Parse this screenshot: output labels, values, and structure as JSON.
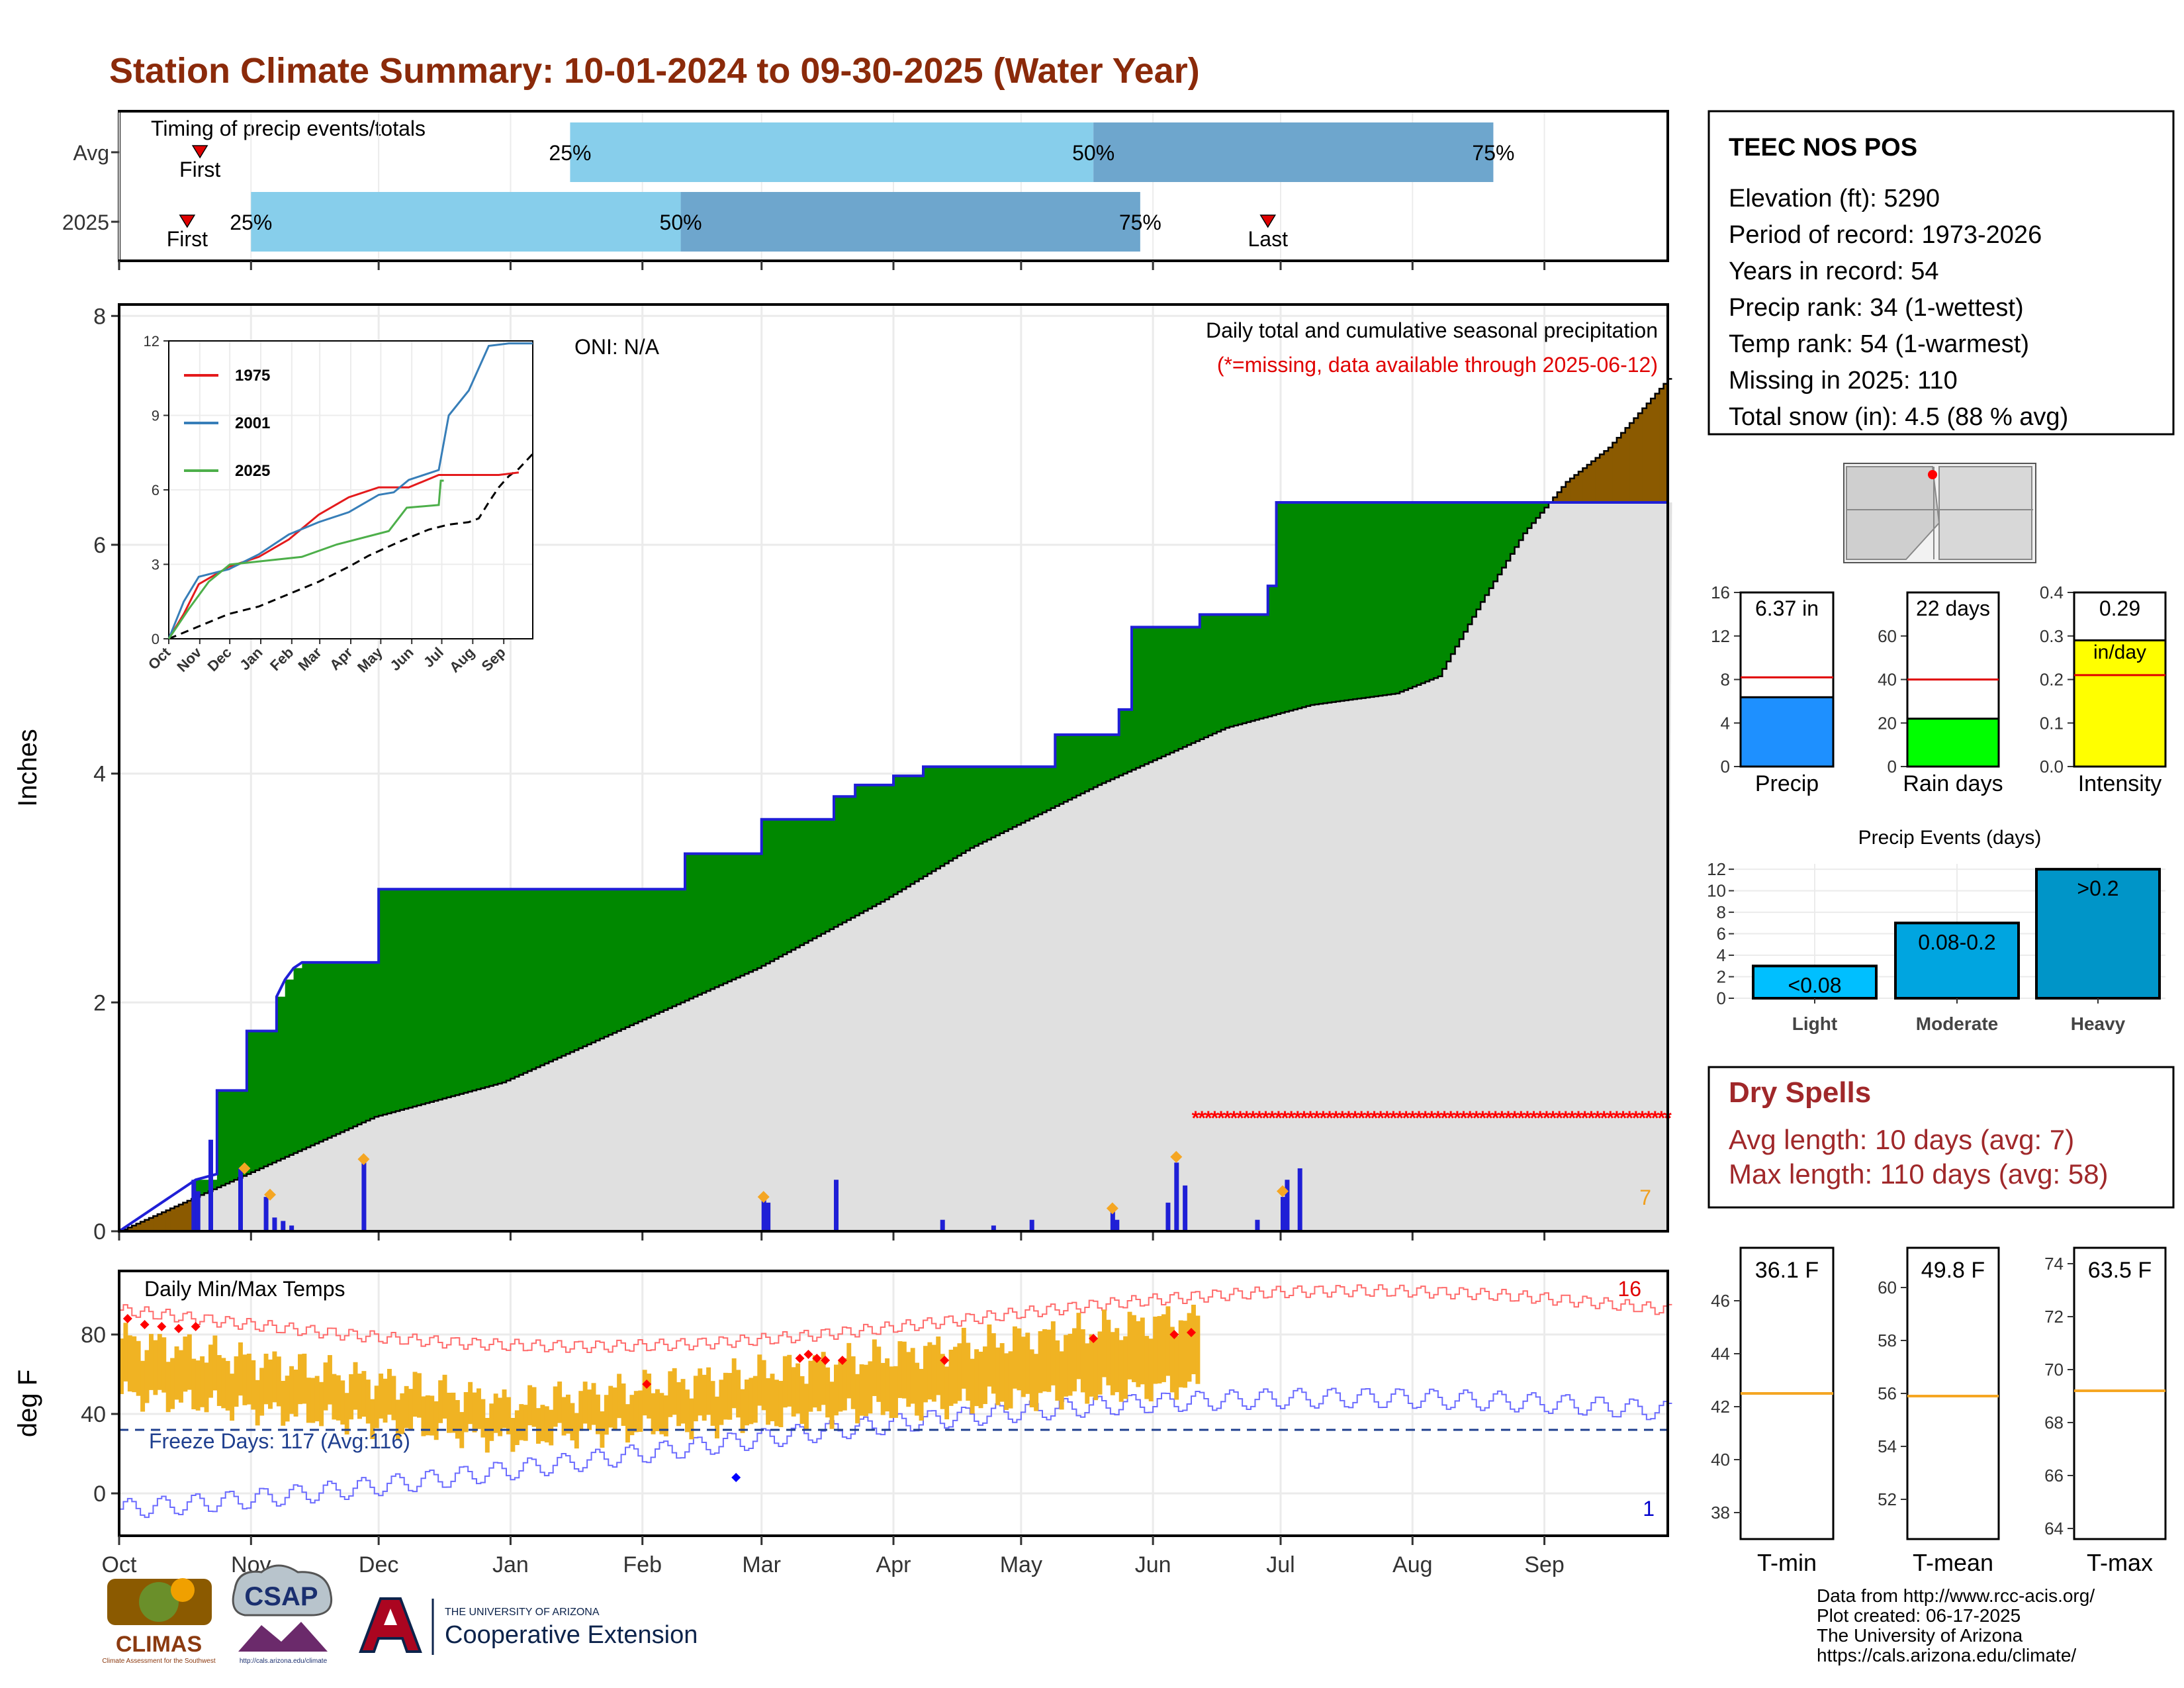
{
  "title": "Station Climate Summary: 10-01-2024 to 09-30-2025 (Water Year)",
  "colors": {
    "title": "#8b2a0a",
    "brown": "#8b5a00",
    "green": "#008800",
    "grey": "#e0e0e0",
    "blue": "#1f1fd6",
    "orange": "#f0b323",
    "red": "#e00000",
    "dryspell": "#a0282a",
    "lightblue": "#87ceeb",
    "midblue": "#6ea6cd"
  },
  "months": [
    "Oct",
    "Nov",
    "Dec",
    "Jan",
    "Feb",
    "Mar",
    "Apr",
    "May",
    "Jun",
    "Jul",
    "Aug",
    "Sep"
  ],
  "timing": {
    "label": "Timing of precip events/totals",
    "rows": [
      {
        "name": "Avg",
        "first_day": 19,
        "q25": 106,
        "q50": 229,
        "q75": 323,
        "last_day": 387
      },
      {
        "name": "2025",
        "first_day": 16,
        "q25": 31,
        "q50": 132,
        "q75": 240,
        "last_day": 270
      }
    ],
    "first_label": "First",
    "last_label": "Last",
    "q_labels": [
      "25%",
      "50%",
      "75%"
    ]
  },
  "precip": {
    "ylabel": "Inches",
    "yticks": [
      0,
      2,
      4,
      6,
      8
    ],
    "ylim": [
      0,
      8.1
    ],
    "oni": "ONI: N/A",
    "caption": "Daily total and cumulative seasonal precipitation",
    "missing_note": "(*=missing, data available through 2025-06-12)",
    "corner_count": "7",
    "cumulative_2025": [
      [
        0,
        0
      ],
      [
        18,
        0.45
      ],
      [
        23,
        0.5
      ],
      [
        23,
        1.23
      ],
      [
        30,
        1.23
      ],
      [
        30,
        1.75
      ],
      [
        37,
        1.75
      ],
      [
        37,
        2.05
      ],
      [
        39,
        2.2
      ],
      [
        41,
        2.3
      ],
      [
        43,
        2.35
      ],
      [
        61,
        2.35
      ],
      [
        61,
        2.99
      ],
      [
        133,
        2.99
      ],
      [
        133,
        3.3
      ],
      [
        151,
        3.3
      ],
      [
        151,
        3.6
      ],
      [
        168,
        3.6
      ],
      [
        168,
        3.8
      ],
      [
        173,
        3.8
      ],
      [
        173,
        3.9
      ],
      [
        182,
        3.9
      ],
      [
        182,
        3.98
      ],
      [
        189,
        3.98
      ],
      [
        189,
        4.06
      ],
      [
        220,
        4.06
      ],
      [
        220,
        4.34
      ],
      [
        235,
        4.34
      ],
      [
        235,
        4.56
      ],
      [
        238,
        4.56
      ],
      [
        238,
        5.28
      ],
      [
        254,
        5.28
      ],
      [
        254,
        5.39
      ],
      [
        270,
        5.39
      ],
      [
        270,
        5.64
      ],
      [
        272,
        5.64
      ],
      [
        272,
        6.37
      ],
      [
        364,
        6.37
      ]
    ],
    "average_cum": [
      [
        0,
        0
      ],
      [
        60,
        1.0
      ],
      [
        90,
        1.3
      ],
      [
        120,
        1.8
      ],
      [
        150,
        2.3
      ],
      [
        180,
        2.9
      ],
      [
        200,
        3.35
      ],
      [
        230,
        3.9
      ],
      [
        260,
        4.4
      ],
      [
        280,
        4.6
      ],
      [
        300,
        4.7
      ],
      [
        310,
        4.85
      ],
      [
        320,
        5.5
      ],
      [
        330,
        6.1
      ],
      [
        340,
        6.55
      ],
      [
        350,
        6.85
      ],
      [
        364,
        7.45
      ]
    ],
    "daily_bars": [
      [
        17,
        0.45
      ],
      [
        18,
        0.35
      ],
      [
        21,
        0.8
      ],
      [
        28,
        0.55
      ],
      [
        34,
        0.3
      ],
      [
        36,
        0.12
      ],
      [
        38,
        0.09
      ],
      [
        40,
        0.05
      ],
      [
        57,
        0.6
      ],
      [
        151,
        0.3
      ],
      [
        152,
        0.25
      ],
      [
        168,
        0.45
      ],
      [
        193,
        0.1
      ],
      [
        205,
        0.05
      ],
      [
        214,
        0.1
      ],
      [
        233,
        0.2
      ],
      [
        234,
        0.1
      ],
      [
        246,
        0.25
      ],
      [
        248,
        0.6
      ],
      [
        250,
        0.4
      ],
      [
        267,
        0.1
      ],
      [
        273,
        0.3
      ],
      [
        274,
        0.45
      ],
      [
        277,
        0.55
      ]
    ],
    "extreme_days": [
      [
        29,
        0.55
      ],
      [
        35,
        0.32
      ],
      [
        57,
        0.63
      ],
      [
        151,
        0.3
      ],
      [
        248,
        0.65
      ],
      [
        273,
        0.35
      ],
      [
        233,
        0.2
      ]
    ],
    "missing_start": 253,
    "missing_value": 1.0
  },
  "inset": {
    "yticks": [
      0,
      3,
      6,
      9,
      12
    ],
    "series": [
      {
        "name": "1975",
        "color": "#e41a1c",
        "points": [
          [
            0,
            0
          ],
          [
            15,
            1.0
          ],
          [
            30,
            2.2
          ],
          [
            60,
            2.9
          ],
          [
            90,
            3.3
          ],
          [
            120,
            4.0
          ],
          [
            150,
            5.0
          ],
          [
            180,
            5.7
          ],
          [
            210,
            6.1
          ],
          [
            240,
            6.1
          ],
          [
            270,
            6.6
          ],
          [
            300,
            6.6
          ],
          [
            330,
            6.6
          ],
          [
            350,
            6.7
          ]
        ]
      },
      {
        "name": "2001",
        "color": "#377eb8",
        "points": [
          [
            0,
            0
          ],
          [
            15,
            1.5
          ],
          [
            30,
            2.5
          ],
          [
            60,
            2.8
          ],
          [
            90,
            3.4
          ],
          [
            120,
            4.2
          ],
          [
            150,
            4.7
          ],
          [
            180,
            5.1
          ],
          [
            210,
            5.8
          ],
          [
            225,
            5.9
          ],
          [
            240,
            6.4
          ],
          [
            270,
            6.8
          ],
          [
            280,
            9.0
          ],
          [
            300,
            10.0
          ],
          [
            320,
            11.8
          ],
          [
            340,
            11.9
          ],
          [
            364,
            11.9
          ]
        ]
      },
      {
        "name": "2025",
        "color": "#4daf4a",
        "points": [
          [
            0,
            0
          ],
          [
            20,
            1.2
          ],
          [
            40,
            2.3
          ],
          [
            61,
            2.99
          ],
          [
            133,
            3.3
          ],
          [
            168,
            3.8
          ],
          [
            220,
            4.34
          ],
          [
            238,
            5.28
          ],
          [
            270,
            5.39
          ],
          [
            272,
            6.37
          ],
          [
            275,
            6.37
          ]
        ]
      }
    ],
    "avg_points": [
      [
        0,
        0
      ],
      [
        60,
        1.0
      ],
      [
        90,
        1.3
      ],
      [
        120,
        1.8
      ],
      [
        150,
        2.3
      ],
      [
        180,
        2.9
      ],
      [
        200,
        3.35
      ],
      [
        230,
        3.9
      ],
      [
        260,
        4.4
      ],
      [
        280,
        4.6
      ],
      [
        300,
        4.7
      ],
      [
        310,
        4.85
      ],
      [
        320,
        5.5
      ],
      [
        330,
        6.1
      ],
      [
        340,
        6.55
      ],
      [
        350,
        6.85
      ],
      [
        364,
        7.45
      ]
    ]
  },
  "temps": {
    "label": "Daily Min/Max Temps",
    "ylabel": "deg F",
    "yticks": [
      0,
      40,
      80
    ],
    "freeze": "Freeze Days: 117 (Avg:116)",
    "max_count": "16",
    "min_count": "1",
    "obs_end": 254
  },
  "station": {
    "name": "TEEC NOS POS",
    "lines": [
      "Elevation (ft): 5290",
      "Period of record: 1973-2026",
      "Years in record: 54",
      "Precip rank: 34 (1-wettest)",
      "Temp rank: 54 (1-warmest)",
      "Missing in 2025: 110",
      "Total snow (in): 4.5 (88 % avg)"
    ]
  },
  "mini_bars": [
    {
      "name": "Precip",
      "value_label": "6.37 in",
      "value": 6.37,
      "avg": 8.2,
      "ylim": [
        0,
        16
      ],
      "yticks": [
        0,
        4,
        8,
        12,
        16
      ],
      "color": "#1e90ff"
    },
    {
      "name": "Rain days",
      "value_label": "22 days",
      "value": 22,
      "avg": 40,
      "ylim": [
        0,
        80
      ],
      "yticks": [
        0,
        20,
        40,
        60
      ],
      "color": "#00ff00"
    },
    {
      "name": "Intensity",
      "value_label": "0.29",
      "value_label2": "in/day",
      "value": 0.29,
      "avg": 0.21,
      "ylim": [
        0,
        0.4
      ],
      "yticks": [
        "0.0",
        "0.1",
        "0.2",
        "0.3",
        "0.4"
      ],
      "color": "#ffff00"
    }
  ],
  "events": {
    "title": "Precip Events (days)",
    "yticks": [
      0,
      2,
      4,
      6,
      8,
      10,
      12
    ],
    "bars": [
      {
        "name": "Light",
        "label": "<0.08",
        "value": 3,
        "color": "#00bfff"
      },
      {
        "name": "Moderate",
        "label": "0.08-0.2",
        "value": 7,
        "color": "#00a5e0"
      },
      {
        "name": "Heavy",
        "label": ">0.2",
        "value": 12,
        "color": "#0095c8"
      }
    ]
  },
  "dry_spells": {
    "title": "Dry Spells",
    "avg": "Avg length: 10 days (avg: 7)",
    "max": "Max length: 110 days (avg: 58)"
  },
  "temp_boxes": [
    {
      "name": "T-min",
      "label": "36.1 F",
      "avg": 42.5,
      "ylim": [
        37,
        48
      ],
      "yticks": [
        38,
        40,
        42,
        44,
        46
      ]
    },
    {
      "name": "T-mean",
      "label": "49.8 F",
      "avg": 55.9,
      "ylim": [
        50.5,
        61.5
      ],
      "yticks": [
        52,
        54,
        56,
        58,
        60
      ]
    },
    {
      "name": "T-max",
      "label": "63.5 F",
      "avg": 69.2,
      "ylim": [
        63.6,
        74.6
      ],
      "yticks": [
        64,
        66,
        68,
        70,
        72,
        74
      ]
    }
  ],
  "footer": {
    "lines": [
      "Data from http://www.rcc-acis.org/",
      "Plot created: 06-17-2025",
      "The University of Arizona",
      "https://cals.arizona.edu/climate/"
    ]
  },
  "logos": {
    "climas": "CLIMAS",
    "climas_sub": "Climate Assessment for the Southwest",
    "csap": "CSAP",
    "csap_url": "http://cals.arizona.edu/climate",
    "ua_small": "THE UNIVERSITY OF ARIZONA",
    "ua_big": "Cooperative Extension"
  }
}
